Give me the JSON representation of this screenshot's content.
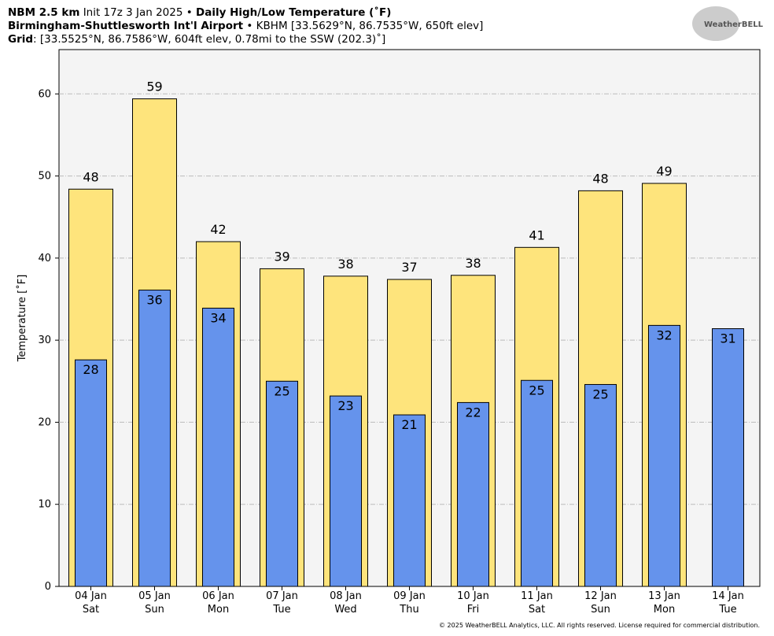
{
  "header": {
    "model": "NBM 2.5 km",
    "init": "Init 17z 3 Jan 2025 •",
    "product": "Daily High/Low Temperature (˚F)",
    "station": "Birmingham-Shuttlesworth Int'l Airport",
    "station_sep": "•",
    "station_info": "KBHM [33.5629°N, 86.7535°W, 650ft elev]",
    "grid_label": "Grid",
    "grid_info": ": [33.5525°N, 86.7586°W, 604ft elev, 0.78mi to the SSW (202.3)˚]",
    "logo": "WeatherBELL"
  },
  "chart_data": {
    "type": "bar",
    "ylabel": "Temperature [˚F]",
    "categories": [
      "04 Jan",
      "05 Jan",
      "06 Jan",
      "07 Jan",
      "08 Jan",
      "09 Jan",
      "10 Jan",
      "11 Jan",
      "12 Jan",
      "13 Jan",
      "14 Jan"
    ],
    "weekdays": [
      "Sat",
      "Sun",
      "Mon",
      "Tue",
      "Wed",
      "Thu",
      "Fri",
      "Sat",
      "Sun",
      "Mon",
      "Tue"
    ],
    "series": [
      {
        "color": "#fee47c",
        "values": [
          48.4,
          59.4,
          42.0,
          38.7,
          37.8,
          37.4,
          37.9,
          41.3,
          48.2,
          49.1,
          null
        ],
        "value_labels": [
          "48",
          "59",
          "42",
          "39",
          "38",
          "37",
          "38",
          "41",
          "48",
          "49",
          null
        ]
      },
      {
        "color": "#6593ec",
        "values": [
          27.6,
          36.1,
          33.9,
          25.0,
          23.2,
          20.9,
          22.4,
          25.1,
          24.6,
          31.8,
          31.4
        ],
        "value_labels": [
          "28",
          "36",
          "34",
          "25",
          "23",
          "21",
          "22",
          "25",
          "25",
          "32",
          "31"
        ]
      }
    ],
    "ylim": [
      0,
      65.4
    ],
    "yticks": [
      0,
      10,
      20,
      30,
      40,
      50,
      60
    ],
    "grid": true
  },
  "footer": "© 2025 WeatherBELL Analytics, LLC. All rights reserved. License required for commercial distribution."
}
